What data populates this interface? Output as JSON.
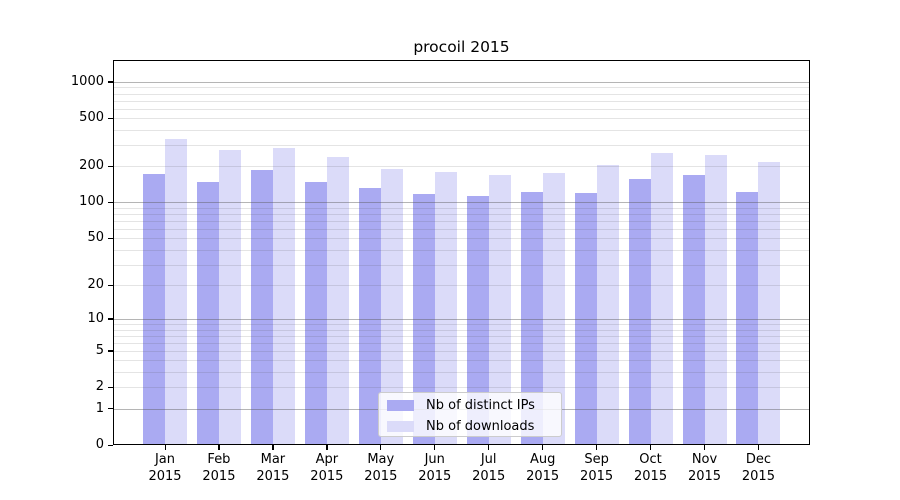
{
  "chart_data": {
    "type": "bar",
    "title": "procoil 2015",
    "categories": [
      [
        "Jan",
        "2015"
      ],
      [
        "Feb",
        "2015"
      ],
      [
        "Mar",
        "2015"
      ],
      [
        "Apr",
        "2015"
      ],
      [
        "May",
        "2015"
      ],
      [
        "Jun",
        "2015"
      ],
      [
        "Jul",
        "2015"
      ],
      [
        "Aug",
        "2015"
      ],
      [
        "Sep",
        "2015"
      ],
      [
        "Oct",
        "2015"
      ],
      [
        "Nov",
        "2015"
      ],
      [
        "Dec",
        "2015"
      ]
    ],
    "series": [
      {
        "name": "Nb of distinct IPs",
        "color": "#aaaaf2",
        "values": [
          172,
          148,
          186,
          147,
          132,
          118,
          113,
          123,
          119,
          156,
          169,
          123
        ]
      },
      {
        "name": "Nb of downloads",
        "color": "#dbdbf9",
        "values": [
          338,
          275,
          283,
          240,
          190,
          178,
          169,
          175,
          207,
          256,
          247,
          218
        ]
      }
    ],
    "xlabel": "",
    "ylabel": "",
    "y_axis": {
      "scale": "log1p",
      "tick_values": [
        0,
        1,
        2,
        5,
        10,
        20,
        50,
        100,
        200,
        500,
        1000
      ],
      "tick_labels": [
        "0",
        "1",
        "2",
        "5",
        "10",
        "20",
        "50",
        "100",
        "200",
        "500",
        "1000"
      ],
      "ylim": [
        0,
        1500
      ],
      "major_gridlines": [
        1,
        10,
        100,
        1000
      ],
      "minor_gridline_steps": [
        2,
        3,
        4,
        5,
        6,
        7,
        8,
        9
      ]
    },
    "grid": "horizontal",
    "legend": {
      "position": "inside-bottom-center",
      "entries": [
        "Nb of distinct IPs",
        "Nb of downloads"
      ]
    },
    "colors": {
      "background": "#ffffff",
      "axis": "#000000",
      "major_grid": "rgba(90,90,90,0.45)",
      "minor_grid": "rgba(90,90,90,0.16)"
    }
  }
}
